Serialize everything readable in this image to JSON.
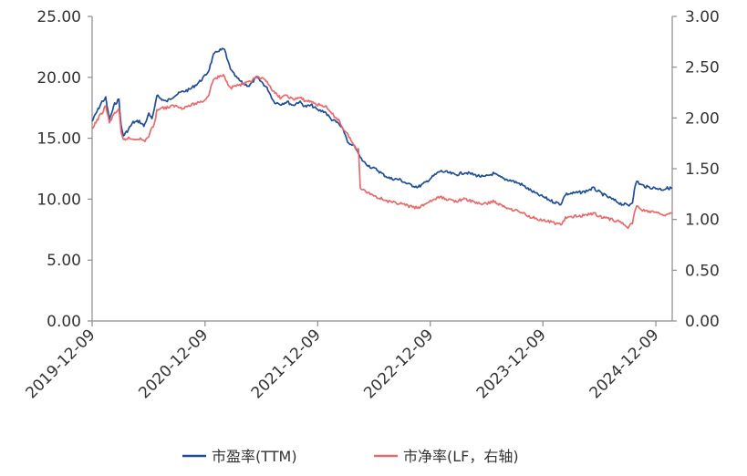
{
  "chart_data": {
    "type": "line",
    "title": "",
    "xlabel": "",
    "ylabel": "",
    "x_range": [
      "2019-12-09",
      "2025-01-31"
    ],
    "x_ticks": [
      "2019-12-09",
      "2020-12-09",
      "2021-12-09",
      "2022-12-09",
      "2023-12-09",
      "2024-12-09"
    ],
    "y_left": {
      "range": [
        0,
        25
      ],
      "ticks": [
        "0.00",
        "5.00",
        "10.00",
        "15.00",
        "20.00",
        "25.00"
      ]
    },
    "y_right": {
      "range": [
        0,
        3
      ],
      "ticks": [
        "0.00",
        "0.50",
        "1.00",
        "1.50",
        "2.00",
        "2.50",
        "3.00"
      ]
    },
    "grid": false,
    "legend_position": "bottom",
    "series": [
      {
        "name": "市盈率(TTM)",
        "axis": "left",
        "color": "#1f4e96",
        "points": [
          [
            "2019-12-09",
            16.4
          ],
          [
            "2019-12-25",
            17.2
          ],
          [
            "2020-01-10",
            18.0
          ],
          [
            "2020-01-22",
            18.3
          ],
          [
            "2020-02-03",
            16.5
          ],
          [
            "2020-02-20",
            17.8
          ],
          [
            "2020-03-05",
            18.2
          ],
          [
            "2020-03-12",
            16.0
          ],
          [
            "2020-03-19",
            15.2
          ],
          [
            "2020-04-01",
            15.6
          ],
          [
            "2020-04-20",
            16.3
          ],
          [
            "2020-05-10",
            16.4
          ],
          [
            "2020-05-25",
            16.0
          ],
          [
            "2020-06-10",
            17.0
          ],
          [
            "2020-06-20",
            16.5
          ],
          [
            "2020-06-28",
            17.5
          ],
          [
            "2020-07-06",
            18.6
          ],
          [
            "2020-07-15",
            18.3
          ],
          [
            "2020-08-05",
            18.0
          ],
          [
            "2020-09-01",
            18.5
          ],
          [
            "2020-09-25",
            18.8
          ],
          [
            "2020-10-20",
            19.0
          ],
          [
            "2020-11-15",
            19.5
          ],
          [
            "2020-12-05",
            20.0
          ],
          [
            "2020-12-20",
            20.5
          ],
          [
            "2021-01-05",
            21.8
          ],
          [
            "2021-01-20",
            22.2
          ],
          [
            "2021-02-10",
            22.3
          ],
          [
            "2021-02-18",
            21.5
          ],
          [
            "2021-03-05",
            20.5
          ],
          [
            "2021-03-20",
            20.0
          ],
          [
            "2021-04-10",
            19.5
          ],
          [
            "2021-05-01",
            19.3
          ],
          [
            "2021-05-25",
            20.0
          ],
          [
            "2021-06-15",
            19.5
          ],
          [
            "2021-07-01",
            19.0
          ],
          [
            "2021-07-20",
            18.0
          ],
          [
            "2021-08-10",
            17.8
          ],
          [
            "2021-09-01",
            18.0
          ],
          [
            "2021-09-20",
            17.7
          ],
          [
            "2021-10-10",
            18.0
          ],
          [
            "2021-10-30",
            17.6
          ],
          [
            "2021-11-20",
            17.7
          ],
          [
            "2021-12-09",
            17.3
          ],
          [
            "2022-01-01",
            17.2
          ],
          [
            "2022-01-20",
            16.6
          ],
          [
            "2022-02-15",
            16.2
          ],
          [
            "2022-03-05",
            15.5
          ],
          [
            "2022-03-20",
            14.5
          ],
          [
            "2022-04-10",
            14.3
          ],
          [
            "2022-04-26",
            13.4
          ],
          [
            "2022-05-10",
            13.0
          ],
          [
            "2022-06-01",
            12.6
          ],
          [
            "2022-06-20",
            12.4
          ],
          [
            "2022-07-10",
            12.0
          ],
          [
            "2022-08-01",
            11.7
          ],
          [
            "2022-09-01",
            11.6
          ],
          [
            "2022-10-01",
            11.2
          ],
          [
            "2022-10-31",
            11.0
          ],
          [
            "2022-11-20",
            11.3
          ],
          [
            "2022-12-09",
            11.7
          ],
          [
            "2023-01-10",
            12.3
          ],
          [
            "2023-02-01",
            12.2
          ],
          [
            "2023-03-01",
            12.0
          ],
          [
            "2023-04-01",
            12.2
          ],
          [
            "2023-05-01",
            12.0
          ],
          [
            "2023-06-01",
            11.8
          ],
          [
            "2023-07-01",
            12.1
          ],
          [
            "2023-08-01",
            11.7
          ],
          [
            "2023-09-01",
            11.5
          ],
          [
            "2023-10-01",
            11.2
          ],
          [
            "2023-10-25",
            10.8
          ],
          [
            "2023-11-20",
            10.4
          ],
          [
            "2023-12-09",
            10.2
          ],
          [
            "2024-01-10",
            9.8
          ],
          [
            "2024-02-05",
            9.6
          ],
          [
            "2024-02-20",
            10.4
          ],
          [
            "2024-03-20",
            10.5
          ],
          [
            "2024-04-20",
            10.6
          ],
          [
            "2024-05-20",
            10.9
          ],
          [
            "2024-06-20",
            10.4
          ],
          [
            "2024-07-20",
            10.0
          ],
          [
            "2024-08-20",
            9.6
          ],
          [
            "2024-09-13",
            9.5
          ],
          [
            "2024-09-24",
            9.8
          ],
          [
            "2024-10-01",
            10.8
          ],
          [
            "2024-10-08",
            11.5
          ],
          [
            "2024-10-20",
            11.2
          ],
          [
            "2024-11-10",
            11.0
          ],
          [
            "2024-12-09",
            10.9
          ],
          [
            "2024-12-30",
            10.8
          ],
          [
            "2025-01-15",
            10.9
          ],
          [
            "2025-01-31",
            10.9
          ]
        ]
      },
      {
        "name": "市净率(LF，右轴)",
        "axis": "right",
        "color": "#e86a6a",
        "points": [
          [
            "2019-12-09",
            1.88
          ],
          [
            "2019-12-25",
            1.98
          ],
          [
            "2020-01-10",
            2.05
          ],
          [
            "2020-01-22",
            2.12
          ],
          [
            "2020-02-03",
            1.95
          ],
          [
            "2020-02-20",
            2.05
          ],
          [
            "2020-03-05",
            2.08
          ],
          [
            "2020-03-12",
            1.85
          ],
          [
            "2020-03-19",
            1.78
          ],
          [
            "2020-04-01",
            1.8
          ],
          [
            "2020-04-20",
            1.79
          ],
          [
            "2020-05-10",
            1.8
          ],
          [
            "2020-05-25",
            1.77
          ],
          [
            "2020-06-10",
            1.82
          ],
          [
            "2020-06-20",
            1.9
          ],
          [
            "2020-06-28",
            1.95
          ],
          [
            "2020-07-06",
            2.07
          ],
          [
            "2020-07-15",
            2.1
          ],
          [
            "2020-08-05",
            2.1
          ],
          [
            "2020-09-01",
            2.12
          ],
          [
            "2020-09-25",
            2.1
          ],
          [
            "2020-10-20",
            2.12
          ],
          [
            "2020-11-15",
            2.15
          ],
          [
            "2020-12-05",
            2.17
          ],
          [
            "2020-12-20",
            2.22
          ],
          [
            "2021-01-05",
            2.38
          ],
          [
            "2021-01-20",
            2.4
          ],
          [
            "2021-02-10",
            2.42
          ],
          [
            "2021-02-18",
            2.35
          ],
          [
            "2021-03-05",
            2.3
          ],
          [
            "2021-03-20",
            2.32
          ],
          [
            "2021-04-10",
            2.33
          ],
          [
            "2021-05-01",
            2.35
          ],
          [
            "2021-05-25",
            2.4
          ],
          [
            "2021-06-15",
            2.38
          ],
          [
            "2021-07-01",
            2.35
          ],
          [
            "2021-07-20",
            2.25
          ],
          [
            "2021-08-10",
            2.2
          ],
          [
            "2021-09-01",
            2.22
          ],
          [
            "2021-09-20",
            2.18
          ],
          [
            "2021-10-10",
            2.2
          ],
          [
            "2021-10-30",
            2.17
          ],
          [
            "2021-11-20",
            2.16
          ],
          [
            "2021-12-09",
            2.13
          ],
          [
            "2022-01-01",
            2.12
          ],
          [
            "2022-01-20",
            2.05
          ],
          [
            "2022-02-15",
            1.98
          ],
          [
            "2022-03-05",
            1.88
          ],
          [
            "2022-03-20",
            1.82
          ],
          [
            "2022-04-10",
            1.7
          ],
          [
            "2022-04-20",
            1.7
          ],
          [
            "2022-04-26",
            1.32
          ],
          [
            "2022-05-10",
            1.28
          ],
          [
            "2022-06-01",
            1.25
          ],
          [
            "2022-06-20",
            1.22
          ],
          [
            "2022-07-10",
            1.2
          ],
          [
            "2022-08-01",
            1.17
          ],
          [
            "2022-09-01",
            1.16
          ],
          [
            "2022-10-01",
            1.13
          ],
          [
            "2022-10-31",
            1.11
          ],
          [
            "2022-11-20",
            1.15
          ],
          [
            "2022-12-09",
            1.18
          ],
          [
            "2023-01-10",
            1.22
          ],
          [
            "2023-02-01",
            1.2
          ],
          [
            "2023-03-01",
            1.18
          ],
          [
            "2023-04-01",
            1.2
          ],
          [
            "2023-05-01",
            1.17
          ],
          [
            "2023-06-01",
            1.15
          ],
          [
            "2023-07-01",
            1.18
          ],
          [
            "2023-08-01",
            1.13
          ],
          [
            "2023-09-01",
            1.1
          ],
          [
            "2023-10-01",
            1.07
          ],
          [
            "2023-10-25",
            1.03
          ],
          [
            "2023-11-20",
            1.01
          ],
          [
            "2023-12-09",
            0.99
          ],
          [
            "2024-01-10",
            0.97
          ],
          [
            "2024-02-05",
            0.95
          ],
          [
            "2024-02-20",
            1.01
          ],
          [
            "2024-03-20",
            1.03
          ],
          [
            "2024-04-20",
            1.04
          ],
          [
            "2024-05-20",
            1.06
          ],
          [
            "2024-06-20",
            1.02
          ],
          [
            "2024-07-20",
            1.0
          ],
          [
            "2024-08-20",
            0.97
          ],
          [
            "2024-09-13",
            0.92
          ],
          [
            "2024-09-24",
            0.97
          ],
          [
            "2024-10-01",
            1.08
          ],
          [
            "2024-10-08",
            1.13
          ],
          [
            "2024-10-20",
            1.1
          ],
          [
            "2024-11-10",
            1.08
          ],
          [
            "2024-12-09",
            1.07
          ],
          [
            "2024-12-30",
            1.04
          ],
          [
            "2025-01-15",
            1.05
          ],
          [
            "2025-01-31",
            1.06
          ]
        ]
      }
    ]
  }
}
